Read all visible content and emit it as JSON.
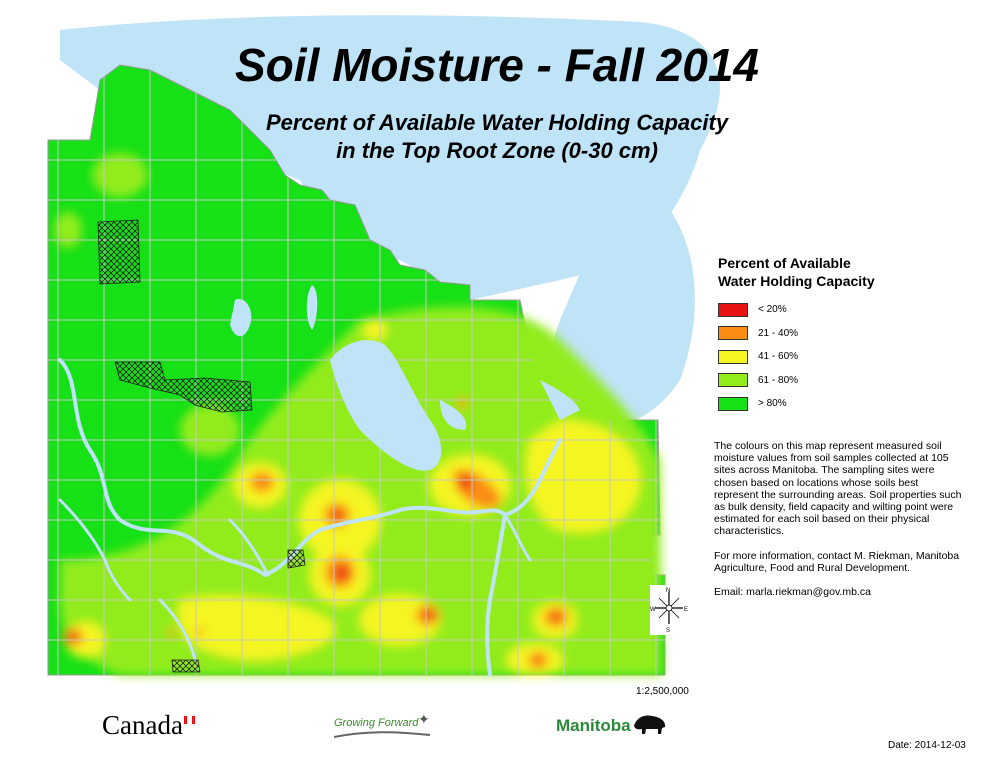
{
  "map": {
    "title": "Soil Moisture - Fall 2014",
    "subtitle_line1": "Percent of Available Water Holding Capacity",
    "subtitle_line2": "in the Top Root Zone (0-30 cm)",
    "colors": {
      "water": "#bfe3f7",
      "wet": "#16e016",
      "moist": "#92ec1a",
      "moderate": "#f5f521",
      "dry": "#fb8c14",
      "very_dry": "#e81414",
      "boundary": "#c8c8c8",
      "river": "#bfe3f7"
    }
  },
  "legend": {
    "title_line1": "Percent of Available",
    "title_line2": "Water Holding Capacity",
    "items": [
      {
        "label": "< 20%",
        "color": "#e81414"
      },
      {
        "label": "21 - 40%",
        "color": "#fb8c14"
      },
      {
        "label": "41 - 60%",
        "color": "#f5f521"
      },
      {
        "label": "61 - 80%",
        "color": "#92ec1a"
      },
      {
        "label": "> 80%",
        "color": "#16e016"
      }
    ]
  },
  "description": {
    "para1": "The colours on this map represent measured soil moisture values from soil samples collected at 105 sites across Manitoba.  The sampling sites were chosen based on locations whose soils best represent the surrounding areas.  Soil properties such as bulk density, field capacity and wilting point were estimated for each soil based on their physical characteristics.",
    "para2": "For more information, contact M. Riekman, Manitoba Agriculture, Food and Rural Development.",
    "email": "Email: marla.riekman@gov.mb.ca"
  },
  "compass": {
    "n": "N",
    "s": "S",
    "e": "E",
    "w": "W"
  },
  "scale": "1:2,500,000",
  "date": "Date: 2014-12-03",
  "logos": {
    "canada": "Canada",
    "growing_forward": "Growing Forward",
    "manitoba": "Manitoba"
  }
}
